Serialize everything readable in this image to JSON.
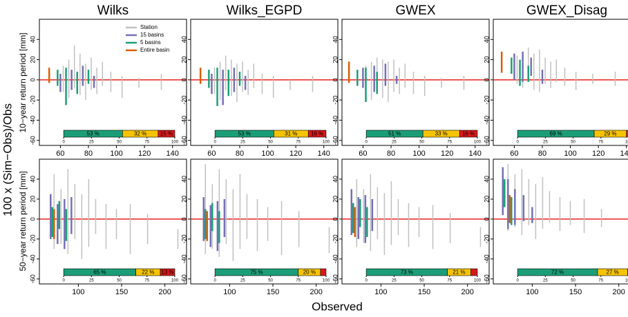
{
  "figure": {
    "ylabel": "100 x (Sim−Obs)/Obs",
    "xlabel": "Observed",
    "row_labels": [
      "10−year return period [mm]",
      "50−year return period [mm]"
    ],
    "bar_ticks": [
      0,
      25,
      50,
      75,
      100
    ]
  },
  "chart_data": [
    {
      "type": "range",
      "title": "Wilks",
      "xlim": [
        45,
        150
      ],
      "xticks": [
        60,
        80,
        100,
        120,
        140
      ],
      "ylim": [
        -65,
        60
      ],
      "yticks": [
        -60,
        -40,
        -20,
        0,
        20,
        40
      ],
      "hline": 0,
      "legend": "top-right",
      "series": [
        {
          "name": "Station",
          "color": "#c0c0c0",
          "x": [
            62,
            66,
            70,
            74,
            78,
            82,
            86,
            90,
            96,
            104,
            116,
            132
          ],
          "low": [
            -12,
            -18,
            -8,
            -15,
            -20,
            -10,
            -14,
            -6,
            -12,
            -18,
            -8,
            -10
          ],
          "high": [
            14,
            20,
            34,
            26,
            16,
            22,
            12,
            18,
            8,
            4,
            2,
            6
          ]
        },
        {
          "name": "15 basins",
          "color": "#7570b3",
          "x": [
            60,
            68,
            76,
            84
          ],
          "low": [
            -12,
            -10,
            -6,
            -8
          ],
          "high": [
            6,
            10,
            14,
            4
          ]
        },
        {
          "name": "5 basins",
          "color": "#1b9e77",
          "x": [
            58,
            64,
            72,
            80
          ],
          "low": [
            -6,
            -25,
            -14,
            -4
          ],
          "high": [
            10,
            12,
            8,
            10
          ]
        },
        {
          "name": "Entire basin",
          "color": "#d95f02",
          "x": [
            52
          ],
          "low": [
            -3
          ],
          "high": [
            12
          ]
        }
      ],
      "shares": {
        "values": [
          53,
          32,
          15
        ],
        "value_labels": [
          "53 %",
          "32 %",
          "15 %"
        ],
        "colors": [
          "#1b9e77",
          "#f5c400",
          "#d7191c"
        ]
      }
    },
    {
      "type": "range",
      "title": "Wilks_EGPD",
      "xlim": [
        45,
        150
      ],
      "xticks": [
        60,
        80,
        100,
        120,
        140
      ],
      "ylim": [
        -65,
        60
      ],
      "yticks": [
        -60,
        -40,
        -20,
        0,
        20,
        40
      ],
      "hline": 0,
      "series": [
        {
          "name": "Station",
          "color": "#c0c0c0",
          "x": [
            62,
            66,
            70,
            74,
            78,
            82,
            86,
            90,
            96,
            104,
            116,
            132
          ],
          "low": [
            -14,
            -20,
            -10,
            -16,
            -22,
            -12,
            -15,
            -8,
            -14,
            -18,
            -10,
            -12
          ],
          "high": [
            12,
            18,
            24,
            20,
            16,
            18,
            10,
            16,
            6,
            4,
            0,
            4
          ]
        },
        {
          "name": "15 basins",
          "color": "#7570b3",
          "x": [
            60,
            68,
            76,
            84
          ],
          "low": [
            -14,
            -25,
            -12,
            -10
          ],
          "high": [
            6,
            10,
            12,
            4
          ]
        },
        {
          "name": "5 basins",
          "color": "#1b9e77",
          "x": [
            58,
            64,
            72,
            80
          ],
          "low": [
            -8,
            -26,
            -16,
            -6
          ],
          "high": [
            10,
            12,
            10,
            8
          ]
        },
        {
          "name": "Entire basin",
          "color": "#d95f02",
          "x": [
            52
          ],
          "low": [
            -4
          ],
          "high": [
            12
          ]
        }
      ],
      "shares": {
        "values": [
          53,
          31,
          16
        ],
        "value_labels": [
          "53 %",
          "31 %",
          "16 %"
        ],
        "colors": [
          "#1b9e77",
          "#f5c400",
          "#d7191c"
        ]
      }
    },
    {
      "type": "range",
      "title": "GWEX",
      "xlim": [
        45,
        150
      ],
      "xticks": [
        60,
        80,
        100,
        120,
        140
      ],
      "ylim": [
        -65,
        60
      ],
      "yticks": [
        -60,
        -40,
        -20,
        0,
        20,
        40
      ],
      "hline": 0,
      "series": [
        {
          "name": "Station",
          "color": "#c0c0c0",
          "x": [
            62,
            66,
            70,
            74,
            78,
            82,
            86,
            90,
            96,
            104,
            116,
            132
          ],
          "low": [
            -12,
            -20,
            -10,
            -18,
            -22,
            -12,
            -14,
            -8,
            -14,
            -16,
            -8,
            -10
          ],
          "high": [
            14,
            18,
            22,
            20,
            18,
            20,
            12,
            16,
            8,
            4,
            2,
            4
          ]
        },
        {
          "name": "15 basins",
          "color": "#7570b3",
          "x": [
            60,
            68,
            76,
            84
          ],
          "low": [
            -8,
            -12,
            -6,
            -4
          ],
          "high": [
            12,
            14,
            16,
            4
          ]
        },
        {
          "name": "5 basins",
          "color": "#1b9e77",
          "x": [
            56,
            62,
            70
          ],
          "low": [
            -6,
            -22,
            -14
          ],
          "high": [
            10,
            12,
            8
          ]
        },
        {
          "name": "Entire basin",
          "color": "#d95f02",
          "x": [
            50
          ],
          "low": [
            -3
          ],
          "high": [
            18
          ]
        }
      ],
      "shares": {
        "values": [
          51,
          33,
          16
        ],
        "value_labels": [
          "51 %",
          "33 %",
          "16 %"
        ],
        "colors": [
          "#1b9e77",
          "#f5c400",
          "#d7191c"
        ]
      }
    },
    {
      "type": "range",
      "title": "GWEX_Disag",
      "xlim": [
        45,
        150
      ],
      "xticks": [
        60,
        80,
        100,
        120,
        140
      ],
      "ylim": [
        -65,
        60
      ],
      "yticks": [
        -60,
        -40,
        -20,
        0,
        20,
        40
      ],
      "hline": 0,
      "series": [
        {
          "name": "Station",
          "color": "#c0c0c0",
          "x": [
            62,
            66,
            70,
            74,
            78,
            82,
            86,
            90,
            96,
            104,
            116,
            132
          ],
          "low": [
            -4,
            -8,
            -2,
            -10,
            -12,
            -4,
            -8,
            -2,
            -6,
            -10,
            -4,
            -6
          ],
          "high": [
            24,
            28,
            32,
            26,
            30,
            22,
            18,
            20,
            12,
            8,
            6,
            8
          ]
        },
        {
          "name": "15 basins",
          "color": "#7570b3",
          "x": [
            60,
            66,
            72,
            80
          ],
          "low": [
            0,
            -2,
            4,
            -4
          ],
          "high": [
            26,
            28,
            22,
            10
          ]
        },
        {
          "name": "5 basins",
          "color": "#1b9e77",
          "x": [
            58,
            64,
            70
          ],
          "low": [
            6,
            -6,
            -2
          ],
          "high": [
            22,
            20,
            14
          ]
        },
        {
          "name": "Entire basin",
          "color": "#d95f02",
          "x": [
            51
          ],
          "low": [
            7
          ],
          "high": [
            28
          ]
        }
      ],
      "shares": {
        "values": [
          69,
          29,
          2
        ],
        "value_labels": [
          "69 %",
          "29 %",
          null
        ],
        "colors": [
          "#1b9e77",
          "#f5c400",
          "#d7191c"
        ]
      }
    },
    {
      "type": "range",
      "xlim": [
        55,
        225
      ],
      "xticks": [
        100,
        150,
        200
      ],
      "ylim": [
        -65,
        60
      ],
      "yticks": [
        -60,
        -40,
        -20,
        0,
        20,
        40
      ],
      "hline": 0,
      "series": [
        {
          "name": "Station",
          "color": "#c0c0c0",
          "x": [
            72,
            80,
            88,
            96,
            104,
            112,
            120,
            132,
            144,
            160,
            180,
            215
          ],
          "low": [
            -30,
            -25,
            -35,
            -20,
            -40,
            -28,
            -15,
            -30,
            -20,
            -35,
            -25,
            -30
          ],
          "high": [
            45,
            30,
            50,
            35,
            25,
            40,
            20,
            15,
            10,
            15,
            5,
            -10
          ]
        },
        {
          "name": "15 basins",
          "color": "#7570b3",
          "x": [
            68,
            76,
            84,
            92
          ],
          "low": [
            -20,
            -25,
            -30,
            -15
          ],
          "high": [
            25,
            15,
            20,
            22
          ]
        },
        {
          "name": "5 basins",
          "color": "#1b9e77",
          "x": [
            70,
            78,
            86
          ],
          "low": [
            -18,
            -10,
            -22
          ],
          "high": [
            12,
            18,
            10
          ]
        },
        {
          "name": "Entire basin",
          "color": "#d95f02",
          "x": [
            72
          ],
          "low": [
            -20
          ],
          "high": [
            10
          ]
        }
      ],
      "shares": {
        "values": [
          65,
          22,
          13
        ],
        "value_labels": [
          "65 %",
          "22 %",
          "13 %"
        ],
        "colors": [
          "#1b9e77",
          "#f5c400",
          "#d7191c"
        ]
      }
    },
    {
      "type": "range",
      "xlim": [
        55,
        225
      ],
      "xticks": [
        100,
        150,
        200
      ],
      "ylim": [
        -65,
        60
      ],
      "yticks": [
        -60,
        -40,
        -20,
        0,
        20,
        40
      ],
      "hline": 0,
      "series": [
        {
          "name": "Station",
          "color": "#c0c0c0",
          "x": [
            72,
            80,
            88,
            96,
            104,
            112,
            120,
            132,
            144,
            160,
            180,
            215
          ],
          "low": [
            -35,
            -30,
            -38,
            -25,
            -42,
            -30,
            -20,
            -32,
            -22,
            -36,
            -28,
            -34
          ],
          "high": [
            55,
            35,
            50,
            40,
            30,
            45,
            25,
            20,
            12,
            18,
            8,
            -8
          ]
        },
        {
          "name": "15 basins",
          "color": "#7570b3",
          "x": [
            70,
            78,
            86,
            94
          ],
          "low": [
            -22,
            -28,
            -32,
            -18
          ],
          "high": [
            22,
            14,
            18,
            20
          ]
        },
        {
          "name": "5 basins",
          "color": "#1b9e77",
          "x": [
            72,
            80,
            88
          ],
          "low": [
            -20,
            -12,
            -24
          ],
          "high": [
            10,
            16,
            8
          ]
        },
        {
          "name": "Entire basin",
          "color": "#d95f02",
          "x": [
            74
          ],
          "low": [
            -22
          ],
          "high": [
            8
          ]
        }
      ],
      "shares": {
        "values": [
          75,
          20,
          5
        ],
        "value_labels": [
          "75 %",
          "20 %",
          null
        ],
        "colors": [
          "#1b9e77",
          "#f5c400",
          "#d7191c"
        ]
      }
    },
    {
      "type": "range",
      "xlim": [
        55,
        225
      ],
      "xticks": [
        100,
        150,
        200
      ],
      "ylim": [
        -65,
        60
      ],
      "yticks": [
        -60,
        -40,
        -20,
        0,
        20,
        40
      ],
      "hline": 0,
      "series": [
        {
          "name": "Station",
          "color": "#c0c0c0",
          "x": [
            72,
            80,
            88,
            96,
            104,
            112,
            120,
            132,
            144,
            160,
            180,
            215
          ],
          "low": [
            -28,
            -24,
            -32,
            -20,
            -36,
            -26,
            -16,
            -28,
            -18,
            -30,
            -24,
            -28
          ],
          "high": [
            40,
            30,
            45,
            32,
            26,
            38,
            20,
            16,
            12,
            14,
            6,
            -8
          ]
        },
        {
          "name": "15 basins",
          "color": "#7570b3",
          "x": [
            66,
            74,
            82,
            90
          ],
          "low": [
            -16,
            -20,
            -24,
            -12
          ],
          "high": [
            30,
            22,
            24,
            20
          ]
        },
        {
          "name": "5 basins",
          "color": "#1b9e77",
          "x": [
            68,
            76,
            84
          ],
          "low": [
            -14,
            -8,
            -18
          ],
          "high": [
            16,
            20,
            12
          ]
        },
        {
          "name": "Entire basin",
          "color": "#d95f02",
          "x": [
            70
          ],
          "low": [
            -18
          ],
          "high": [
            12
          ]
        }
      ],
      "shares": {
        "values": [
          73,
          21,
          6
        ],
        "value_labels": [
          "73 %",
          "21 %",
          null
        ],
        "colors": [
          "#1b9e77",
          "#f5c400",
          "#d7191c"
        ]
      }
    },
    {
      "type": "range",
      "xlim": [
        55,
        225
      ],
      "xticks": [
        100,
        150,
        200
      ],
      "ylim": [
        -65,
        60
      ],
      "yticks": [
        -60,
        -40,
        -20,
        0,
        20,
        40
      ],
      "hline": 0,
      "series": [
        {
          "name": "Station",
          "color": "#c0c0c0",
          "x": [
            72,
            80,
            88,
            96,
            104,
            112,
            120,
            132,
            144,
            160,
            180,
            215
          ],
          "low": [
            -12,
            -8,
            -16,
            -6,
            -20,
            -10,
            -4,
            -12,
            -6,
            -14,
            -8,
            -12
          ],
          "high": [
            55,
            45,
            50,
            40,
            35,
            42,
            28,
            22,
            18,
            20,
            10,
            4
          ]
        },
        {
          "name": "15 basins",
          "color": "#7570b3",
          "x": [
            66,
            72,
            80,
            90,
            100
          ],
          "low": [
            4,
            -10,
            -6,
            -2,
            -4
          ],
          "high": [
            52,
            40,
            30,
            24,
            12
          ]
        },
        {
          "name": "5 basins",
          "color": "#1b9e77",
          "x": [
            68,
            76
          ],
          "low": [
            12,
            -6
          ],
          "high": [
            40,
            22
          ]
        },
        {
          "name": "Entire basin",
          "color": "#d95f02",
          "x": [
            74
          ],
          "low": [
            -4
          ],
          "high": [
            24
          ]
        }
      ],
      "shares": {
        "values": [
          72,
          27,
          1
        ],
        "value_labels": [
          "72 %",
          "27 %",
          null
        ],
        "colors": [
          "#1b9e77",
          "#f5c400",
          "#d7191c"
        ]
      }
    }
  ]
}
